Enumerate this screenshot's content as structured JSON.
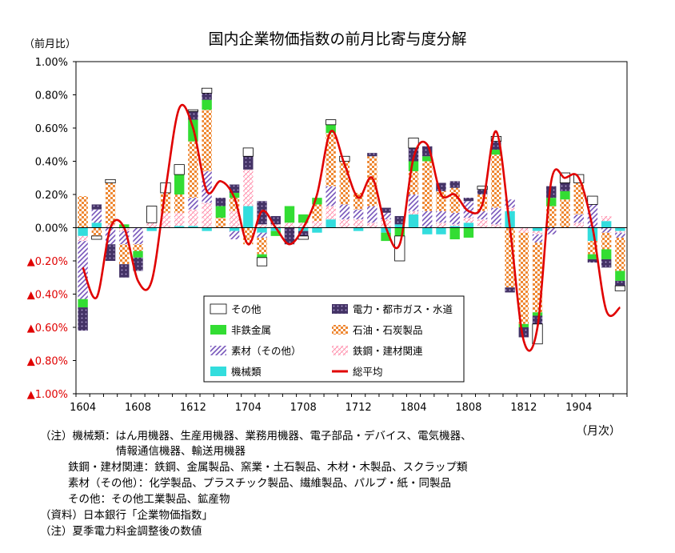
{
  "chart_data": {
    "type": "bar",
    "stacked": true,
    "title": "国内企業物価指数の前月比寄与度分解",
    "ylabel": "（前月比）",
    "xlabel": "（月次）",
    "ylim": [
      -1.0,
      1.0
    ],
    "yticks": [
      {
        "value": 1.0,
        "label": "1.00%"
      },
      {
        "value": 0.8,
        "label": "0.80%"
      },
      {
        "value": 0.6,
        "label": "0.60%"
      },
      {
        "value": 0.4,
        "label": "0.40%"
      },
      {
        "value": 0.2,
        "label": "0.20%"
      },
      {
        "value": 0.0,
        "label": "0.00%"
      },
      {
        "value": -0.2,
        "label": "▲0.20%"
      },
      {
        "value": -0.4,
        "label": "▲0.40%"
      },
      {
        "value": -0.6,
        "label": "▲0.60%"
      },
      {
        "value": -0.8,
        "label": "▲0.80%"
      },
      {
        "value": -1.0,
        "label": "▲1.00%"
      }
    ],
    "xtick_labels": [
      {
        "index": 0,
        "label": "1604"
      },
      {
        "index": 4,
        "label": "1608"
      },
      {
        "index": 8,
        "label": "1612"
      },
      {
        "index": 12,
        "label": "1704"
      },
      {
        "index": 16,
        "label": "1708"
      },
      {
        "index": 20,
        "label": "1712"
      },
      {
        "index": 24,
        "label": "1804"
      },
      {
        "index": 28,
        "label": "1808"
      },
      {
        "index": 32,
        "label": "1812"
      },
      {
        "index": 36,
        "label": "1904"
      }
    ],
    "categories": [
      "1604",
      "1605",
      "1606",
      "1607",
      "1608",
      "1609",
      "1610",
      "1611",
      "1612",
      "1701",
      "1702",
      "1703",
      "1704",
      "1705",
      "1706",
      "1707",
      "1708",
      "1709",
      "1710",
      "1711",
      "1712",
      "1801",
      "1802",
      "1803",
      "1804",
      "1805",
      "1806",
      "1807",
      "1808",
      "1809",
      "1810",
      "1811",
      "1812",
      "1901",
      "1902",
      "1903",
      "1904",
      "1905",
      "1906",
      "1907"
    ],
    "series": [
      {
        "name": "機械類",
        "color": "#33dddd",
        "values": [
          -0.05,
          0.03,
          0.0,
          0.0,
          0.0,
          -0.02,
          0.0,
          0.01,
          0.01,
          -0.02,
          0.0,
          -0.02,
          0.13,
          -0.03,
          -0.02,
          0.0,
          -0.02,
          -0.03,
          0.05,
          0.0,
          -0.02,
          0.0,
          -0.03,
          0.02,
          0.08,
          -0.04,
          -0.04,
          0.01,
          0.03,
          0.0,
          0.0,
          0.1,
          0.0,
          -0.02,
          0.0,
          0.0,
          0.0,
          -0.08,
          0.04,
          -0.02
        ]
      },
      {
        "name": "鉄鋼・建材関連",
        "color": "#ff88aa",
        "values": [
          -0.03,
          0.0,
          0.02,
          -0.02,
          0.0,
          0.03,
          0.09,
          0.08,
          0.1,
          0.15,
          0.0,
          0.1,
          0.22,
          0.02,
          0.02,
          0.03,
          0.03,
          0.04,
          0.08,
          0.05,
          0.05,
          0.03,
          0.05,
          0.0,
          0.02,
          0.0,
          0.03,
          0.01,
          0.03,
          0.05,
          0.02,
          0.02,
          -0.03,
          -0.02,
          0.0,
          0.0,
          0.03,
          0.0,
          0.03,
          -0.01
        ]
      },
      {
        "name": "素材（その他）",
        "color": "#8866cc",
        "values": [
          -0.35,
          0.08,
          -0.1,
          -0.08,
          -0.1,
          0.0,
          0.0,
          0.0,
          0.07,
          0.19,
          0.0,
          -0.05,
          0.0,
          -0.03,
          0.0,
          0.0,
          0.0,
          0.0,
          0.12,
          0.09,
          0.06,
          0.1,
          0.04,
          0.0,
          0.1,
          0.1,
          0.07,
          0.07,
          0.1,
          0.05,
          0.1,
          0.05,
          0.0,
          -0.05,
          -0.04,
          0.0,
          0.05,
          0.14,
          -0.03,
          -0.03
        ]
      },
      {
        "name": "石油・石炭製品",
        "color": "#ee8833",
        "values": [
          0.19,
          -0.05,
          0.25,
          -0.12,
          -0.04,
          0.0,
          0.12,
          0.11,
          0.34,
          0.37,
          0.06,
          0.08,
          -0.1,
          -0.1,
          0.0,
          0.0,
          0.0,
          0.1,
          0.32,
          0.26,
          0.1,
          0.3,
          0.0,
          0.0,
          0.14,
          0.3,
          0.12,
          0.15,
          0.0,
          0.1,
          0.32,
          -0.36,
          -0.55,
          -0.42,
          0.13,
          0.17,
          0.19,
          -0.08,
          -0.1,
          -0.2
        ]
      },
      {
        "name": "非鉄金属",
        "color": "#33dd33",
        "values": [
          -0.05,
          0.0,
          0.0,
          0.02,
          -0.04,
          0.0,
          0.0,
          0.12,
          0.13,
          0.06,
          0.07,
          0.03,
          0.0,
          -0.02,
          -0.03,
          0.1,
          0.05,
          0.04,
          0.05,
          0.0,
          0.0,
          0.0,
          -0.05,
          -0.05,
          0.06,
          0.03,
          0.0,
          -0.07,
          -0.06,
          0.0,
          0.03,
          0.0,
          -0.02,
          -0.02,
          0.05,
          0.05,
          0.0,
          -0.03,
          -0.06,
          -0.06
        ]
      },
      {
        "name": "電力・都市ガス・水道",
        "color": "#553377",
        "values": [
          -0.14,
          0.03,
          -0.1,
          -0.08,
          -0.08,
          0.0,
          0.0,
          0.0,
          0.05,
          0.04,
          0.05,
          0.05,
          0.08,
          0.14,
          0.05,
          -0.1,
          -0.03,
          0.0,
          0.0,
          0.0,
          0.0,
          0.02,
          0.03,
          0.05,
          0.08,
          0.06,
          0.05,
          0.04,
          0.02,
          0.03,
          0.05,
          -0.03,
          -0.06,
          -0.05,
          0.07,
          0.05,
          0.0,
          -0.02,
          -0.05,
          -0.03
        ]
      },
      {
        "name": "その他",
        "color": "#ffffff",
        "values": [
          0.0,
          -0.02,
          0.02,
          0.0,
          0.0,
          0.1,
          0.06,
          0.06,
          0.01,
          0.03,
          0.0,
          0.0,
          0.05,
          -0.05,
          0.0,
          0.0,
          -0.02,
          0.0,
          0.03,
          0.03,
          0.0,
          0.0,
          0.0,
          -0.15,
          0.06,
          0.0,
          0.0,
          0.0,
          0.0,
          0.02,
          0.03,
          0.0,
          0.0,
          -0.12,
          0.0,
          0.06,
          0.05,
          0.05,
          0.0,
          -0.03
        ]
      },
      {
        "name": "総平均",
        "color": "#e00000",
        "kind": "line",
        "values": [
          -0.24,
          -0.42,
          0.0,
          0.0,
          -0.32,
          -0.32,
          0.23,
          0.72,
          0.6,
          0.22,
          0.28,
          0.18,
          -0.1,
          0.1,
          0.0,
          -0.1,
          0.0,
          0.2,
          0.58,
          0.38,
          0.18,
          0.3,
          0.0,
          -0.1,
          0.42,
          0.5,
          0.2,
          0.2,
          0.1,
          0.14,
          0.58,
          0.0,
          -0.68,
          -0.6,
          0.28,
          0.3,
          0.3,
          0.0,
          -0.5,
          -0.48
        ]
      }
    ],
    "legend": {
      "placement": "bottom-center",
      "columns": 2,
      "order": [
        "その他",
        "電力・都市ガス・水道",
        "非鉄金属",
        "石油・石炭製品",
        "素材（その他）",
        "鉄鋼・建材関連",
        "機械類",
        "総平均"
      ]
    },
    "grid": false
  },
  "notes": [
    "（注）機械類：はん用機器、生産用機器、業務用機器、電子部品・デバイス、電気機器、",
    "情報通信機器、輸送用機器",
    "鉄鋼・建材関連：鉄鋼、金属製品、窯業・土石製品、木材・木製品、スクラップ類",
    "素材（その他）：化学製品、プラスチック製品、繊維製品、パルプ・紙・同製品",
    "その他：その他工業製品、鉱産物",
    "（資料）日本銀行「企業物価指数」",
    "（注）夏季電力料金調整後の数値"
  ]
}
